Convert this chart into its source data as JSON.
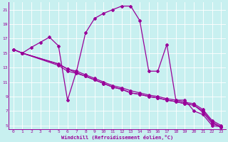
{
  "xlabel": "Windchill (Refroidissement éolien,°C)",
  "bg_color": "#c8f0f0",
  "line_color": "#990099",
  "grid_color": "#ffffff",
  "xlim": [
    -0.5,
    23.5
  ],
  "ylim": [
    4.5,
    22
  ],
  "yticks": [
    5,
    7,
    9,
    11,
    13,
    15,
    17,
    19,
    21
  ],
  "xticks": [
    0,
    1,
    2,
    3,
    4,
    5,
    6,
    7,
    8,
    9,
    10,
    11,
    12,
    13,
    14,
    15,
    16,
    17,
    18,
    19,
    20,
    21,
    22,
    23
  ],
  "line1_x": [
    0,
    1,
    2,
    3,
    4,
    5,
    6,
    7,
    8,
    9,
    10,
    11,
    12,
    13,
    14,
    15,
    16,
    17,
    18,
    19,
    20,
    21,
    22,
    23
  ],
  "line1_y": [
    15.5,
    15.0,
    15.8,
    16.5,
    17.2,
    16.0,
    8.5,
    12.5,
    17.8,
    19.8,
    20.5,
    21.0,
    21.5,
    21.5,
    19.5,
    12.5,
    12.5,
    16.2,
    8.5,
    8.5,
    7.0,
    6.5,
    5.0,
    4.8
  ],
  "line2_x": [
    0,
    1,
    5,
    6,
    7,
    8,
    9,
    10,
    11,
    12,
    13,
    14,
    15,
    16,
    17,
    18,
    19,
    20,
    21,
    22,
    23
  ],
  "line2_y": [
    15.5,
    15.0,
    13.5,
    12.8,
    12.3,
    11.8,
    11.3,
    10.8,
    10.3,
    10.0,
    9.5,
    9.3,
    9.0,
    8.8,
    8.5,
    8.3,
    8.0,
    7.8,
    7.0,
    5.5,
    4.8
  ],
  "line3_x": [
    0,
    1,
    5,
    6,
    7,
    8,
    9,
    10,
    11,
    12,
    13,
    14,
    15,
    16,
    17,
    18,
    19,
    20,
    21,
    22,
    23
  ],
  "line3_y": [
    15.5,
    15.0,
    13.5,
    12.8,
    12.5,
    12.0,
    11.5,
    11.0,
    10.5,
    10.2,
    9.8,
    9.5,
    9.2,
    9.0,
    8.7,
    8.5,
    8.2,
    8.0,
    7.2,
    5.7,
    5.0
  ],
  "line4_x": [
    1,
    5,
    6,
    7,
    8,
    9,
    10,
    11,
    12,
    13,
    14,
    15,
    16,
    17,
    18,
    19,
    20,
    21,
    22,
    23
  ],
  "line4_y": [
    15.0,
    13.3,
    12.5,
    12.2,
    11.8,
    11.3,
    10.8,
    10.3,
    10.0,
    9.5,
    9.3,
    9.0,
    8.8,
    8.5,
    8.3,
    8.0,
    7.8,
    6.8,
    5.3,
    4.8
  ]
}
